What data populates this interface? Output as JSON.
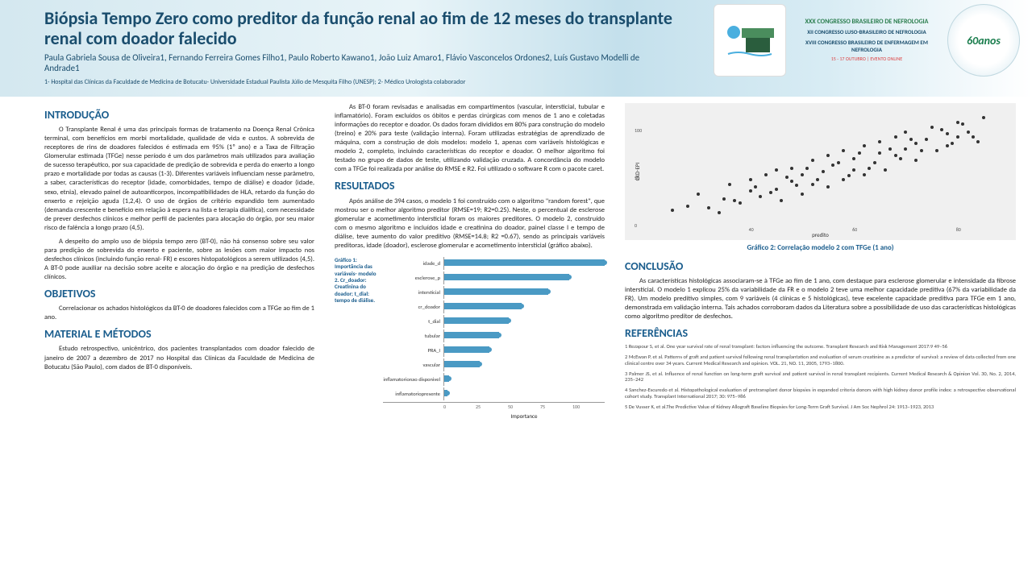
{
  "header": {
    "title": "Biópsia Tempo Zero como preditor da função renal ao fim de 12 meses do transplante renal com doador falecido",
    "authors": "Paula Gabriela Sousa de Oliveira1, Fernando Ferreira Gomes Filho1, Paulo Roberto Kawano1, João Luiz Amaro1, Flávio Vasconcelos Ordones2, Luís Gustavo Modelli de Andrade1",
    "affil": "1- Hospital das Clínicas da Faculdade de Medicina de Botucatu- Universidade Estadual Paulista Júlio de Mesquita Filho (UNESP); 2- Médico Urologista colaborador",
    "congress_main": "XXX CONGRESSO BRASILEIRO DE NEFROLOGIA",
    "congress_sub1": "XII CONGRESSO LUSO-BRASILEIRO DE NEFROLOGIA",
    "congress_sub2": "XVIII CONGRESSO BRASILEIRO DE ENFERMAGEM EM NEFROLOGIA",
    "congress_date": "15 - 17 OUTUBRO | EVENTO ONLINE",
    "logo_round": "60anos"
  },
  "sections": {
    "intro_h": "INTRODUÇÃO",
    "intro_p1": "O Transplante Renal é uma das principais formas de tratamento na Doença Renal Crônica terminal, com benefícios em morbi mortalidade, qualidade de vida e custos. A sobrevida de receptores de rins de doadores falecidos é estimada em 95% (1º ano) e a Taxa de Filtração Glomerular estimada (TFGe) nesse período é um dos parâmetros mais utilizados para avaliação de sucesso terapêutico, por sua capacidade de predição de sobrevida e perda do enxerto a longo prazo e mortalidade por todas as causas (1-3). Diferentes variáveis influenciam nesse parâmetro, a saber, características do receptor (idade, comorbidades, tempo de diálise) e doador (idade, sexo, etnia), elevado painel de autoanticorpos, incompatibilidades de HLA, retardo da função do enxerto e rejeição aguda (1,2,4). O uso de órgãos de critério expandido tem aumentado (demanda crescente e benefício em relação à espera na lista e terapia dialítica), com necessidade de prever desfechos clínicos e melhor perfil de pacientes para alocação do órgão, por seu maior risco de falência a longo prazo (4,5).",
    "intro_p2": "A despeito do amplo uso de biópsia tempo zero (BT-0), não há consenso sobre seu valor para predição de sobrevida do enxerto e paciente, sobre as lesões com maior impacto nos desfechos clínicos (incluindo função renal- FR) e escores histopatológicos a serem utilizados (4,5). A BT-0 pode auxiliar na decisão sobre aceite e alocação do órgão e na predição de desfechos clínicos.",
    "obj_h": "OBJETIVOS",
    "obj_p": "Correlacionar os achados histológicos da BT-0 de doadores falecidos com a TFGe ao fim de 1 ano.",
    "met_h": "MATERIAL E MÉTODOS",
    "met_p": "Estudo retrospectivo, unicêntrico, dos pacientes transplantados com doador falecido de janeiro de 2007 a dezembro de 2017 no Hospital das Clínicas da Faculdade de Medicina de Botucatu (São Paulo), com dados de BT-0 disponíveis.",
    "met_p2": "As BT-0 foram revisadas e analisadas em compartimentos (vascular, intersticial, tubular e inflamatório). Foram excluídos os óbitos e perdas cirúrgicas com menos de 1 ano e coletadas informações do receptor e doador. Os dados foram divididos em 80% para construção do modelo (treino) e 20% para teste (validação interna). Foram utilizadas estratégias de aprendizado de máquina, com a construção de dois modelos: modelo 1, apenas com variáveis histológicas e modelo 2, completo, incluindo características do receptor e doador. O melhor algoritmo foi testado no grupo de dados de teste, utilizando validação cruzada. A concordância do modelo com a TFGe foi realizada por análise do RMSE e R2. Foi utilizado o software R com o pacote caret.",
    "res_h": "RESULTADOS",
    "res_p": "Após análise de 394 casos, o modelo 1 foi construído com o algoritmo \"random forest\", que mostrou ser o melhor algoritmo preditor (RMSE=19; R2=0.25). Neste, o percentual de esclerose glomerular e acometimento intersticial foram os maiores preditores. O modelo 2, construído com o mesmo algoritmo e incluídos idade e creatinina do doador, painel classe I e tempo de diálise, teve aumento do valor preditivo (RMSE=14.8; R2 =0.67), sendo as principais variáveis preditoras, idade (doador), esclerose glomerular e acometimento intersticial (gráfico abaixo).",
    "chart1_label": "Gráfico 1: Importância das variáveis- modelo 2. Cr_doador: Creatinina do doador; t_dial: tempo de diálise.",
    "chart1_xlabel": "Importance",
    "scatter_caption": "Gráfico 2: Correlação modelo 2 com TFGe (1 ano)",
    "scatter_y": "CKD-EPI",
    "scatter_x": "predito",
    "conc_h": "CONCLUSÃO",
    "conc_p": "As características histológicas associaram-se à TFGe ao fim de 1 ano, com destaque para esclerose glomerular e intensidade da fibrose intersticial. O modelo 1 explicou 25% da variabilidade da FR e o modelo 2 teve uma melhor capacidade preditiva (67% da variabilidade da FR). Um modelo preditivo simples, com 9 variáveis (4 clínicas e 5 histológicas), teve excelente capacidade preditiva para TFGe em 1 ano, demonstrada em validação interna. Tais achados corroboram dados da Literatura sobre a possibilidade de uso das características histológicas como algoritmo preditor de desfechos.",
    "ref_h": "REFERÊNCIAS",
    "ref1": "1 Rezapour S, et al. One year survival rate of renal transplant: factors influencing the outcome. Transplant Research and Risk Management 2017:9 49–56",
    "ref2": "2 McEwan P, et al. Patterns of graft and patient survival following renal transplantation and evaluation of serum creatinine as a predictor of survival: a review of data collected from one clinical centre over 34 years. Current Medical Research and opinion. VOL. 21, NO. 11, 2005, 1793–1800.",
    "ref3": "3 Palmer JS, et al. Influence of renal function on long-term graft survival and patient survival in renal transplant recipients. Current Medical Research & Opinion Vol. 30, No. 2, 2014, 235–242",
    "ref4": "4 Sanchez-Escuredo et al. Histopathological evaluation of pretransplant donor biopsies in expanded criteria donors with high kidney donor profile index: a retrospective observational cohort study. Transplant International 2017; 30: 975–986",
    "ref5": "5 De Vusser K, et al.The Predictive Value of Kidney Allograft Baseline Biopsies for Long-Term Graft Survival. J Am Soc Nephrol 24: 1913–1923, 2013"
  },
  "chart1": {
    "bars": [
      {
        "name": "idade_d",
        "value": 100
      },
      {
        "name": "esclerose_p",
        "value": 78
      },
      {
        "name": "intersticial",
        "value": 65
      },
      {
        "name": "cr_doador",
        "value": 48
      },
      {
        "name": "t_dial",
        "value": 40
      },
      {
        "name": "tubular",
        "value": 34
      },
      {
        "name": "PRA_I",
        "value": 28
      },
      {
        "name": "vascular",
        "value": 22
      },
      {
        "name": "inflamatorionao disponivel",
        "value": 3
      },
      {
        "name": "inflamatoriopresente",
        "value": 2
      }
    ],
    "xticks": [
      "0",
      "25",
      "50",
      "75",
      "100"
    ],
    "bar_color": "#4a9ac4",
    "axis_color": "#999"
  },
  "scatter": {
    "background": "#f0f0f0",
    "point_color": "#333",
    "xlim": [
      20,
      90
    ],
    "ylim": [
      0,
      120
    ],
    "xticks": [
      40,
      60,
      80
    ],
    "yticks": [
      0,
      50,
      100
    ],
    "points": [
      [
        25,
        18
      ],
      [
        28,
        22
      ],
      [
        30,
        35
      ],
      [
        32,
        20
      ],
      [
        35,
        30
      ],
      [
        36,
        45
      ],
      [
        38,
        25
      ],
      [
        40,
        38
      ],
      [
        40,
        50
      ],
      [
        42,
        32
      ],
      [
        43,
        55
      ],
      [
        45,
        40
      ],
      [
        45,
        60
      ],
      [
        46,
        28
      ],
      [
        48,
        48
      ],
      [
        48,
        62
      ],
      [
        50,
        35
      ],
      [
        50,
        55
      ],
      [
        52,
        70
      ],
      [
        52,
        45
      ],
      [
        54,
        58
      ],
      [
        55,
        42
      ],
      [
        55,
        75
      ],
      [
        56,
        65
      ],
      [
        58,
        50
      ],
      [
        58,
        80
      ],
      [
        60,
        60
      ],
      [
        60,
        72
      ],
      [
        62,
        55
      ],
      [
        62,
        85
      ],
      [
        64,
        68
      ],
      [
        65,
        78
      ],
      [
        65,
        90
      ],
      [
        66,
        60
      ],
      [
        68,
        75
      ],
      [
        68,
        95
      ],
      [
        70,
        82
      ],
      [
        70,
        100
      ],
      [
        72,
        88
      ],
      [
        72,
        70
      ],
      [
        74,
        92
      ],
      [
        75,
        105
      ],
      [
        76,
        80
      ],
      [
        78,
        98
      ],
      [
        78,
        85
      ],
      [
        80,
        110
      ],
      [
        80,
        95
      ],
      [
        82,
        100
      ],
      [
        84,
        90
      ],
      [
        85,
        115
      ],
      [
        34,
        15
      ],
      [
        37,
        28
      ],
      [
        41,
        42
      ],
      [
        44,
        36
      ],
      [
        47,
        52
      ],
      [
        49,
        44
      ],
      [
        51,
        62
      ],
      [
        53,
        50
      ],
      [
        57,
        68
      ],
      [
        59,
        54
      ],
      [
        61,
        78
      ],
      [
        63,
        62
      ],
      [
        67,
        82
      ],
      [
        69,
        72
      ],
      [
        71,
        92
      ],
      [
        73,
        80
      ],
      [
        77,
        102
      ],
      [
        79,
        88
      ],
      [
        81,
        108
      ],
      [
        83,
        95
      ]
    ]
  }
}
